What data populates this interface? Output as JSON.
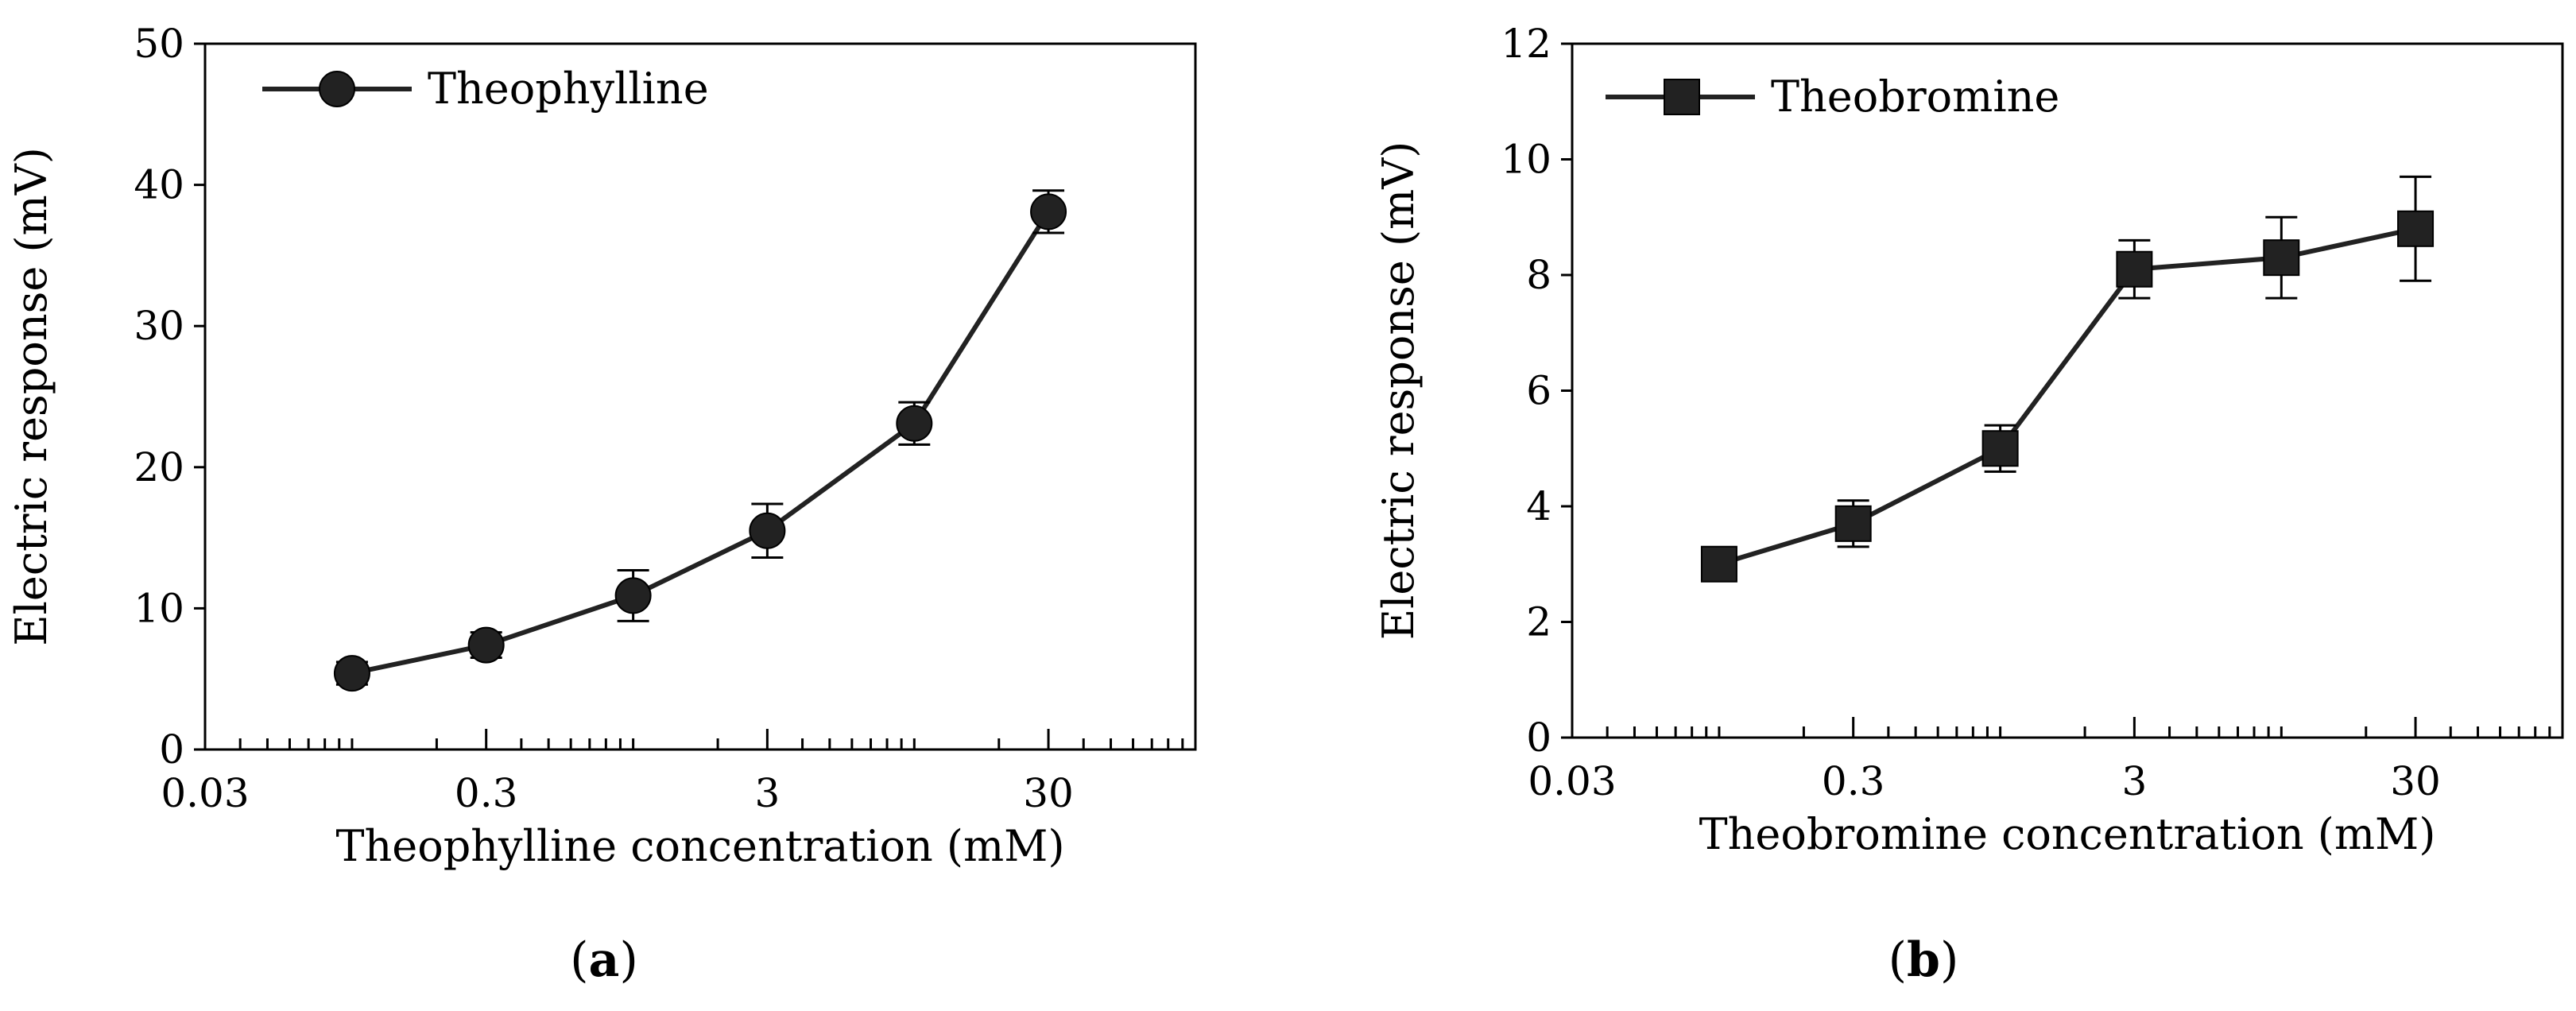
{
  "chart_data": [
    {
      "type": "line",
      "panel_label": "a",
      "title": "",
      "xlabel": "Theophylline concentration (mM)",
      "ylabel": "Electric response (mV)",
      "x_scale": "log",
      "xlim": [
        0.03,
        100
      ],
      "ylim": [
        0,
        50
      ],
      "y_ticks": [
        0,
        10,
        20,
        30,
        40,
        50
      ],
      "x_tick_labels": [
        {
          "value": 0.03,
          "label": "0.03"
        },
        {
          "value": 0.3,
          "label": "0.3"
        },
        {
          "value": 3,
          "label": "3"
        },
        {
          "value": 30,
          "label": "30"
        }
      ],
      "legend_position": "top-left",
      "series": [
        {
          "name": "Theophylline",
          "marker": "circle",
          "color": "#222222",
          "x": [
            0.1,
            0.3,
            1,
            3,
            10,
            30
          ],
          "y": [
            5.4,
            7.4,
            10.9,
            15.5,
            23.1,
            38.1
          ],
          "error": [
            0.8,
            0.9,
            1.8,
            1.9,
            1.5,
            1.5
          ]
        }
      ]
    },
    {
      "type": "line",
      "panel_label": "b",
      "title": "",
      "xlabel": "Theobromine concentration (mM)",
      "ylabel": "Electric response (mV)",
      "x_scale": "log",
      "xlim": [
        0.03,
        100
      ],
      "ylim": [
        0,
        12
      ],
      "y_ticks": [
        0,
        2,
        4,
        6,
        8,
        10,
        12
      ],
      "x_tick_labels": [
        {
          "value": 0.03,
          "label": "0.03"
        },
        {
          "value": 0.3,
          "label": "0.3"
        },
        {
          "value": 3,
          "label": "3"
        },
        {
          "value": 30,
          "label": "30"
        }
      ],
      "legend_position": "top-left",
      "series": [
        {
          "name": "Theobromine",
          "marker": "square",
          "color": "#222222",
          "x": [
            0.1,
            0.3,
            1,
            3,
            10,
            30
          ],
          "y": [
            3.0,
            3.7,
            5.0,
            8.1,
            8.3,
            8.8
          ],
          "error": [
            0.15,
            0.4,
            0.4,
            0.5,
            0.7,
            0.9
          ]
        }
      ]
    }
  ]
}
